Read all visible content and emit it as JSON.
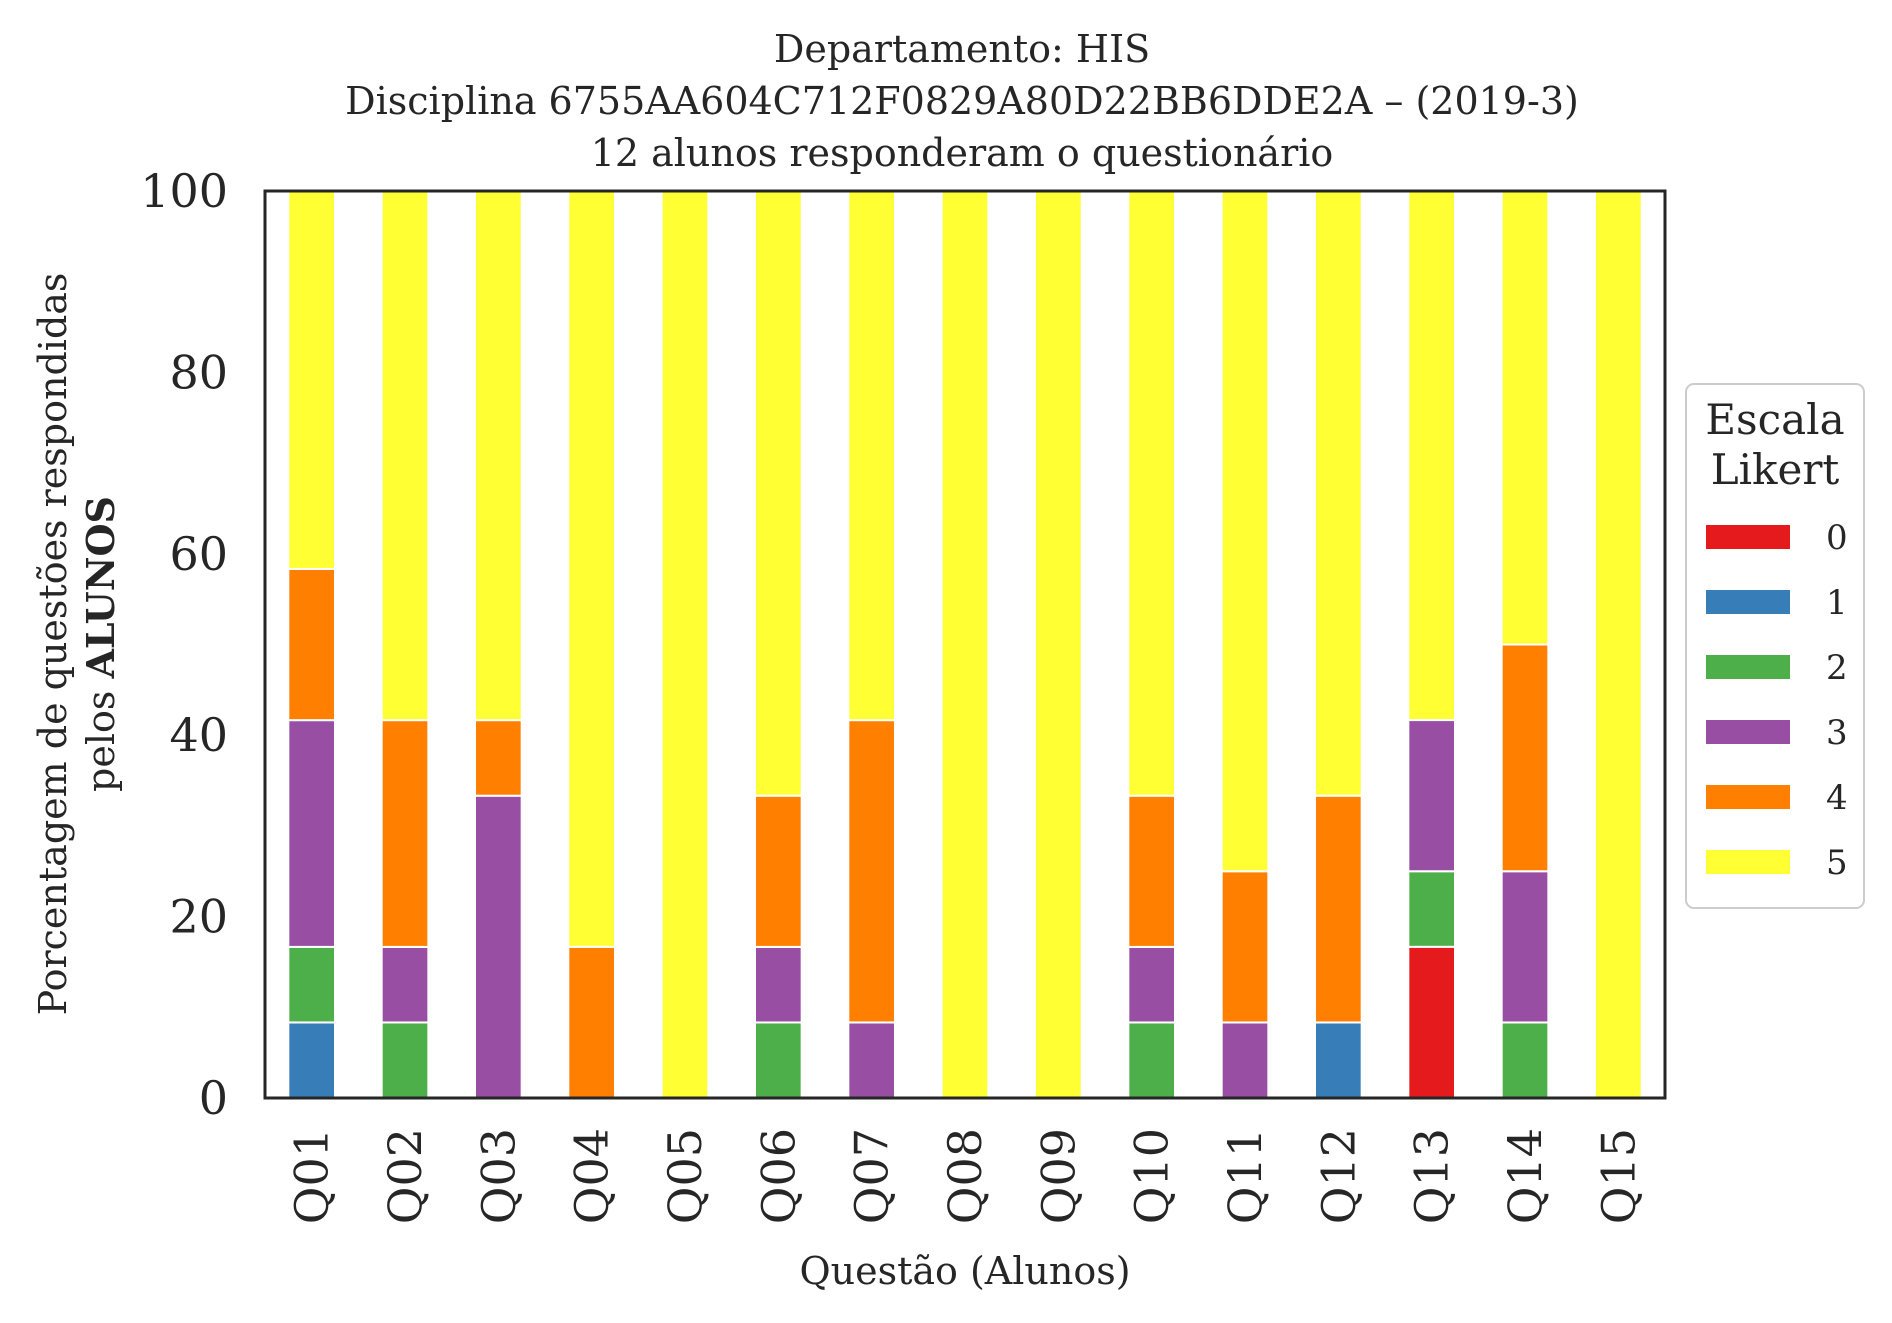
{
  "chart_data": {
    "type": "bar",
    "stacked": true,
    "title_lines": [
      "Departamento: HIS",
      "Disciplina 6755AA604C712F0829A80D22BB6DDE2A – (2019-3)",
      "12 alunos responderam o questionário"
    ],
    "xlabel": "Questão (Alunos)",
    "ylabel_line1": "Porcentagem de questões respondidas",
    "ylabel_line2_prefix": "pelos ",
    "ylabel_line2_bold": "ALUNOS",
    "ylim": [
      0,
      100
    ],
    "yticks": [
      "0",
      "20",
      "40",
      "60",
      "80",
      "100"
    ],
    "grid": false,
    "categories": [
      "Q01",
      "Q02",
      "Q03",
      "Q04",
      "Q05",
      "Q06",
      "Q07",
      "Q08",
      "Q09",
      "Q10",
      "Q11",
      "Q12",
      "Q13",
      "Q14",
      "Q15"
    ],
    "legend": {
      "title_line1": "Escala",
      "title_line2": "Likert",
      "placement": "center-right outside"
    },
    "series": [
      {
        "name": "0",
        "color": "#e41a1c",
        "values": [
          0,
          0,
          0,
          0,
          0,
          0,
          0,
          0,
          0,
          0,
          0,
          0,
          16.67,
          0,
          0
        ]
      },
      {
        "name": "1",
        "color": "#377eb8",
        "values": [
          8.33,
          0,
          0,
          0,
          0,
          0,
          0,
          0,
          0,
          0,
          0,
          8.33,
          0,
          0,
          0
        ]
      },
      {
        "name": "2",
        "color": "#4daf4a",
        "values": [
          8.33,
          8.33,
          0,
          0,
          0,
          8.33,
          0,
          0,
          0,
          8.33,
          0,
          0,
          8.33,
          8.33,
          0
        ]
      },
      {
        "name": "3",
        "color": "#984ea3",
        "values": [
          25,
          8.33,
          33.33,
          0,
          0,
          8.33,
          8.33,
          0,
          0,
          8.33,
          8.33,
          0,
          16.67,
          16.67,
          0
        ]
      },
      {
        "name": "4",
        "color": "#ff7f00",
        "values": [
          16.67,
          25,
          8.33,
          16.67,
          0,
          16.67,
          33.33,
          0,
          0,
          16.67,
          16.67,
          25,
          0,
          25,
          0
        ]
      },
      {
        "name": "5",
        "color": "#ffff33",
        "values": [
          41.67,
          58.33,
          58.33,
          83.33,
          100,
          66.67,
          58.33,
          100,
          100,
          66.67,
          75,
          66.67,
          58.33,
          50,
          100
        ]
      }
    ]
  }
}
